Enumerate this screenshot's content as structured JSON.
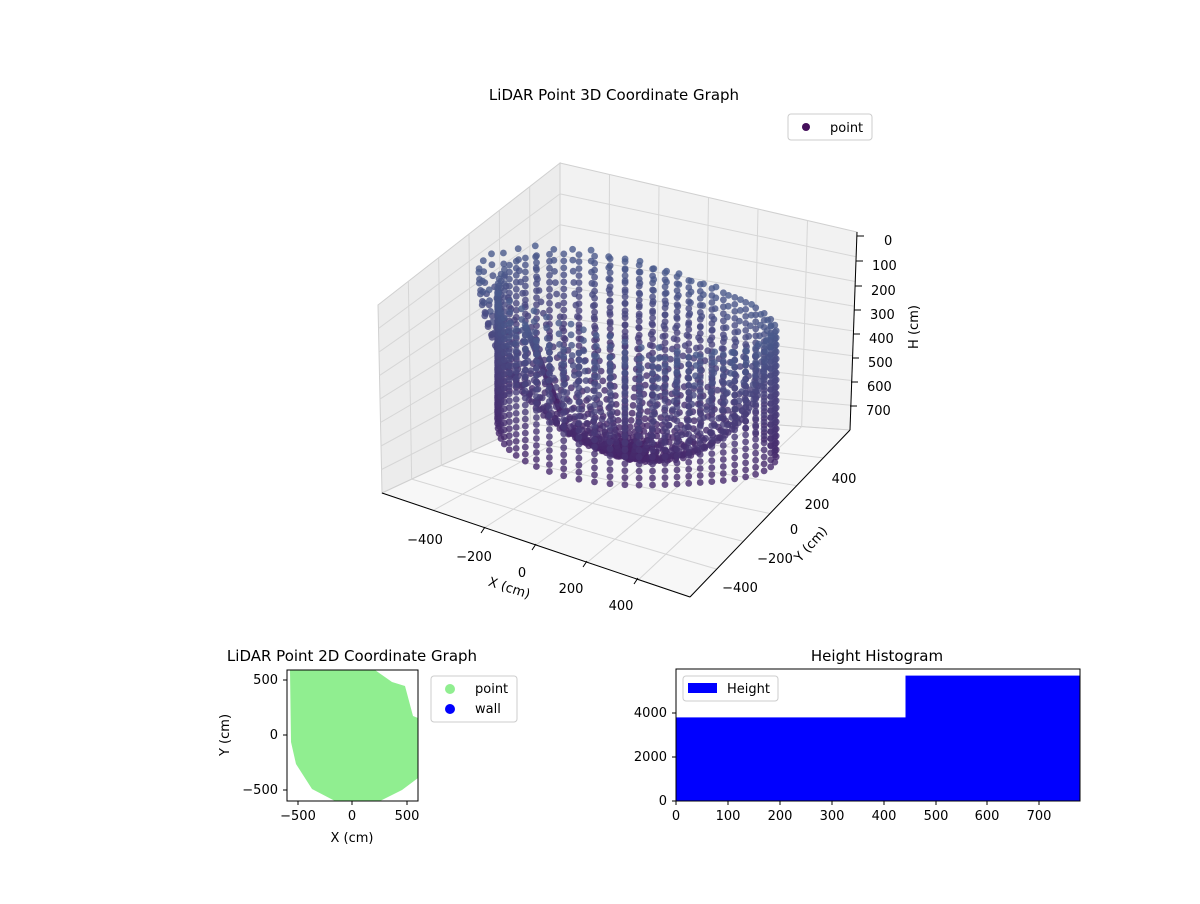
{
  "chart_data": [
    {
      "type": "scatter",
      "title": "LiDAR Point 3D Coordinate Graph",
      "xlabel": "X (cm)",
      "ylabel": "Y (cm)",
      "zlabel": "H (cm)",
      "x_ticks": [
        "−400",
        "−200",
        "0",
        "200",
        "400"
      ],
      "y_ticks": [
        "−400",
        "−200",
        "0",
        "200",
        "400"
      ],
      "z_ticks": [
        "0",
        "100",
        "200",
        "300",
        "400",
        "500",
        "600",
        "700"
      ],
      "xlim": [
        -600,
        600
      ],
      "ylim": [
        -600,
        600
      ],
      "zlim": [
        0,
        780
      ],
      "z_inverted": true,
      "legend": [
        "point"
      ],
      "legend_position": "top-right",
      "grid": true,
      "colors": {
        "top": "#440f5a",
        "bottom": "#4a5d8e"
      }
    },
    {
      "type": "scatter",
      "title": "LiDAR Point 2D Coordinate Graph",
      "xlabel": "X (cm)",
      "ylabel": "Y (cm)",
      "x_ticks": [
        "−500",
        "0",
        "500"
      ],
      "y_ticks": [
        "500",
        "0",
        "−500"
      ],
      "xlim": [
        -600,
        600
      ],
      "ylim": [
        -600,
        600
      ],
      "series": [
        {
          "name": "point",
          "color": "#90ee90"
        },
        {
          "name": "wall",
          "color": "#0000ff"
        }
      ],
      "legend_position": "outside-right",
      "grid": false
    },
    {
      "type": "bar",
      "title": "Height Histogram",
      "x_ticks": [
        "0",
        "100",
        "200",
        "300",
        "400",
        "500",
        "600",
        "700"
      ],
      "y_ticks": [
        "0",
        "2000",
        "4000"
      ],
      "xlim": [
        0,
        780
      ],
      "ylim": [
        0,
        6000
      ],
      "bins": [
        {
          "start": 0,
          "end": 443,
          "value": 3800
        },
        {
          "start": 443,
          "end": 780,
          "value": 5700
        }
      ],
      "series": [
        {
          "name": "Height",
          "color": "#0000ff"
        }
      ],
      "legend_position": "upper-left",
      "grid": false
    }
  ]
}
